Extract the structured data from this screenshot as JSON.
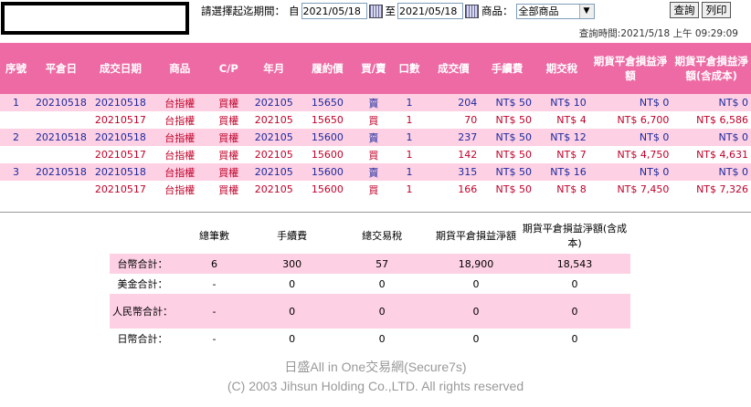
{
  "filter": {
    "period_label": "請選擇起迄期間：",
    "from_label": "自",
    "from_date": "2021/05/18",
    "to_label": "至",
    "to_date": "2021/05/18",
    "product_label": "商品：",
    "product_value": "全部商品",
    "query_label": "查詢",
    "print_label": "列印"
  },
  "query_time": "查詢時間:2021/5/18 上午 09:29:09",
  "table": {
    "headers": [
      "序號",
      "平倉日",
      "成交日期",
      "商品",
      "C/P",
      "年月",
      "履約價",
      "買/賣",
      "口數",
      "成交價",
      "手續費",
      "期交稅",
      "期貨平倉損益淨額",
      "期貨平倉損益淨額(含成本)"
    ],
    "rows": [
      {
        "seq": "1",
        "close_date": "20210518",
        "trade_date": "20210518",
        "product": "台指權",
        "cp": "買權",
        "ym": "202105",
        "strike": "15650",
        "bs": "賣",
        "qty": "1",
        "price": "204",
        "fee": "NT$  50",
        "tax": "NT$  10",
        "pl": "NT$  0",
        "pl_cost": "NT$  0"
      },
      {
        "seq": "",
        "close_date": "",
        "trade_date": "20210517",
        "product": "台指權",
        "cp": "買權",
        "ym": "202105",
        "strike": "15650",
        "bs": "買",
        "qty": "1",
        "price": "70",
        "fee": "NT$  50",
        "tax": "NT$  4",
        "pl": "NT$  6,700",
        "pl_cost": "NT$  6,586"
      },
      {
        "seq": "2",
        "close_date": "20210518",
        "trade_date": "20210518",
        "product": "台指權",
        "cp": "買權",
        "ym": "202105",
        "strike": "15600",
        "bs": "賣",
        "qty": "1",
        "price": "237",
        "fee": "NT$  50",
        "tax": "NT$  12",
        "pl": "NT$  0",
        "pl_cost": "NT$  0"
      },
      {
        "seq": "",
        "close_date": "",
        "trade_date": "20210517",
        "product": "台指權",
        "cp": "買權",
        "ym": "202105",
        "strike": "15600",
        "bs": "買",
        "qty": "1",
        "price": "142",
        "fee": "NT$  50",
        "tax": "NT$  7",
        "pl": "NT$  4,750",
        "pl_cost": "NT$  4,631"
      },
      {
        "seq": "3",
        "close_date": "20210518",
        "trade_date": "20210518",
        "product": "台指權",
        "cp": "買權",
        "ym": "202105",
        "strike": "15600",
        "bs": "賣",
        "qty": "1",
        "price": "315",
        "fee": "NT$  50",
        "tax": "NT$  16",
        "pl": "NT$  0",
        "pl_cost": "NT$  0"
      },
      {
        "seq": "",
        "close_date": "",
        "trade_date": "20210517",
        "product": "台指權",
        "cp": "買權",
        "ym": "202105",
        "strike": "15600",
        "bs": "買",
        "qty": "1",
        "price": "166",
        "fee": "NT$  50",
        "tax": "NT$  8",
        "pl": "NT$  7,450",
        "pl_cost": "NT$  7,326"
      }
    ]
  },
  "summary": {
    "headers": [
      "總筆數",
      "手續費",
      "總交易稅",
      "期貨平倉損益淨額",
      "期貨平倉損益淨額(含成本)"
    ],
    "rows": [
      {
        "label": "台幣合計：",
        "count": "6",
        "fee": "300",
        "tax": "57",
        "pl": "18,900",
        "pl_cost": "18,543"
      },
      {
        "label": "美金合計：",
        "count": "-",
        "fee": "0",
        "tax": "0",
        "pl": "0",
        "pl_cost": "0"
      },
      {
        "label": "人民幣合計：",
        "count": "-",
        "fee": "0",
        "tax": "0",
        "pl": "0",
        "pl_cost": "0"
      },
      {
        "label": "日幣合計：",
        "count": "-",
        "fee": "0",
        "tax": "0",
        "pl": "0",
        "pl_cost": "0"
      }
    ]
  },
  "footer": {
    "line1": "日盛All in One交易網(Secure7s)",
    "line2": "(C) 2003 Jihsun Holding Co.,LTD. All rights reserved"
  },
  "colors": {
    "header_bg": "#ee6aa4",
    "row_pink": "#fdd0e3",
    "blue": "#1b2aa0",
    "red": "#c0002a"
  }
}
